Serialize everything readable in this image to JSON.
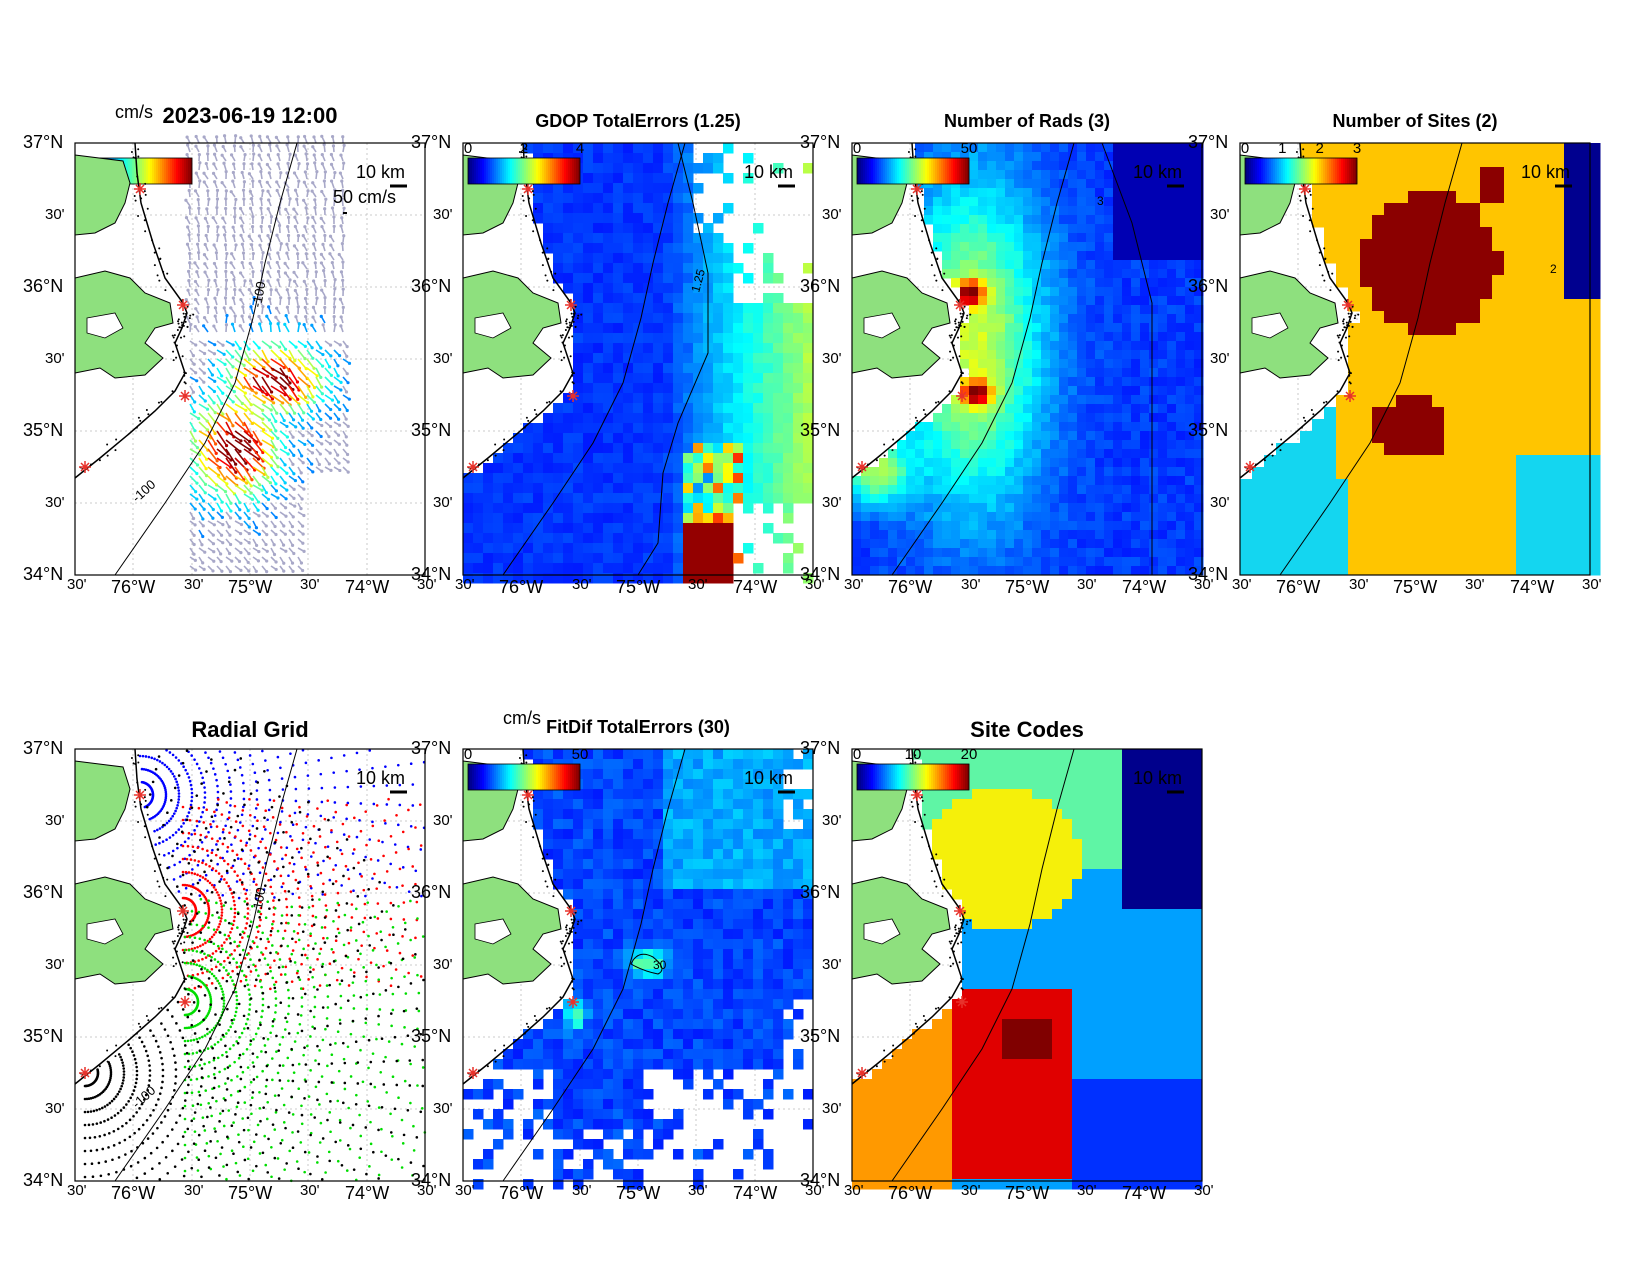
{
  "figure_title": "2023-06-19 12:00",
  "scale_label": "10 km",
  "vector_scale_label": "50 cm/s",
  "colorbar_unit": "cm/s",
  "isobath_label": "-100",
  "axes": {
    "lat_major": [
      "37°N",
      "36°N",
      "35°N",
      "34°N"
    ],
    "lat_minor": [
      "30'",
      "30'",
      "30'"
    ],
    "lon_labels": [
      "30'",
      "76°W",
      "30'",
      "75°W",
      "30'",
      "74°W",
      "30'"
    ]
  },
  "panels": [
    {
      "id": "totals",
      "title": "2023-06-19 12:00",
      "colorbar_ticks": [],
      "contour_labels": []
    },
    {
      "id": "gdop",
      "title": "GDOP TotalErrors (1.25)",
      "colorbar_ticks": [
        "0",
        "2",
        "4"
      ],
      "contour_labels": [
        "1.25"
      ]
    },
    {
      "id": "nrads",
      "title": "Number of Rads (3)",
      "colorbar_ticks": [
        "0",
        "50"
      ],
      "contour_labels": [
        "3"
      ]
    },
    {
      "id": "nsites",
      "title": "Number of Sites (2)",
      "colorbar_ticks": [
        "0",
        "1",
        "2",
        "3"
      ],
      "contour_labels": [
        "2"
      ]
    },
    {
      "id": "radialgrid",
      "title": "Radial Grid",
      "colorbar_ticks": [],
      "contour_labels": []
    },
    {
      "id": "fitdif",
      "title": "FitDif TotalErrors (30)",
      "colorbar_ticks": [
        "0",
        "50"
      ],
      "contour_labels": [
        "30"
      ]
    },
    {
      "id": "sitecodes",
      "title": "Site Codes",
      "colorbar_ticks": [
        "0",
        "10",
        "20"
      ],
      "contour_labels": []
    }
  ],
  "colors": {
    "land": "#8ee07e",
    "site_marker": "#e8322b",
    "jet_low": "#00008f",
    "jet_high": "#800000",
    "radial_sites": [
      "#0000ff",
      "#ff0000",
      "#00dd00",
      "#000000"
    ],
    "site_code_colors": [
      "#5ff5a5",
      "#f5f00a",
      "#00a0ff",
      "#e00000",
      "#ff9900",
      "#800000",
      "#0030ff",
      "#00008c"
    ]
  }
}
